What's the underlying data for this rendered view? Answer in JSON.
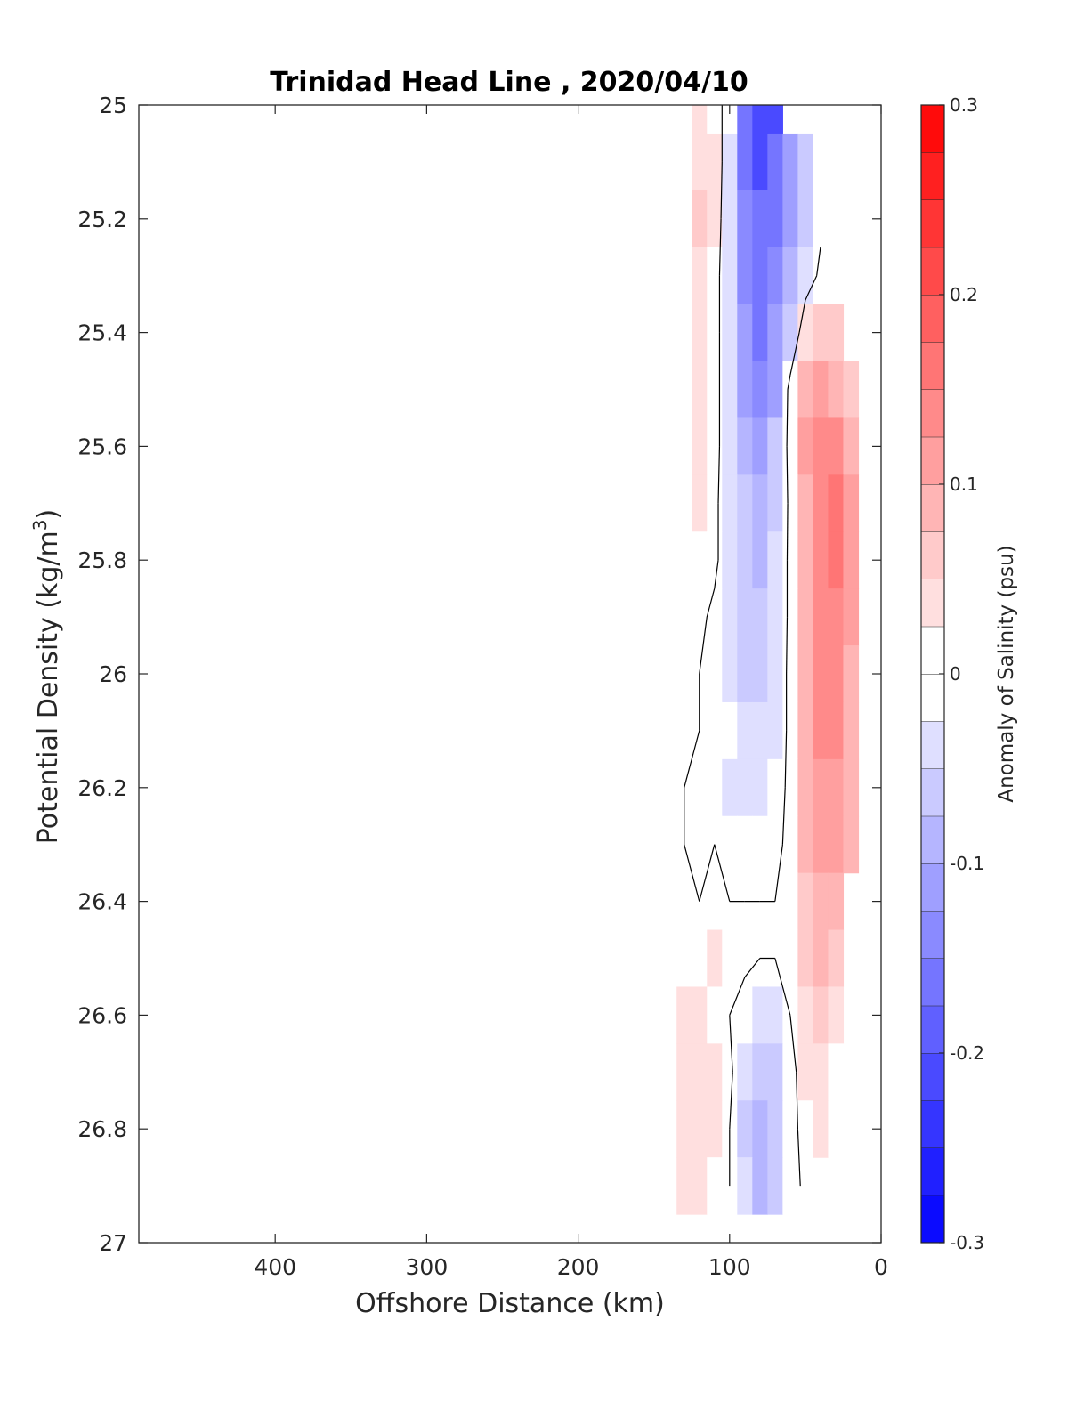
{
  "chart_data": {
    "type": "heatmap",
    "subtype": "filled-contour",
    "title": "Trinidad Head Line , 2020/04/10",
    "xlabel": "Offshore Distance (km)",
    "ylabel": "Potential Density (kg/m",
    "ylabel_superscript": "3",
    "ylabel_suffix": ")",
    "xlim": [
      490,
      0
    ],
    "ylim": [
      25,
      27
    ],
    "x_reversed": true,
    "y_reversed": true,
    "x_ticks": [
      400,
      300,
      200,
      100,
      0
    ],
    "y_ticks": [
      25,
      25.2,
      25.4,
      25.6,
      25.8,
      26,
      26.2,
      26.4,
      26.6,
      26.8,
      27
    ],
    "y_tick_labels": [
      "25",
      "25.2",
      "25.4",
      "25.6",
      "25.8",
      "26",
      "26.2",
      "26.4",
      "26.6",
      "26.8",
      "27"
    ],
    "colorbar": {
      "label": "Anomaly of Salinity (psu)",
      "range": [
        -0.3,
        0.3
      ],
      "ticks": [
        0.3,
        0.2,
        0.1,
        0,
        -0.1,
        -0.2,
        -0.3
      ],
      "tick_labels": [
        "0.3",
        "0.2",
        "0.1",
        "0",
        "-0.1",
        "-0.2",
        "-0.3"
      ],
      "levels": [
        -0.3,
        -0.275,
        -0.25,
        -0.225,
        -0.2,
        -0.175,
        -0.15,
        -0.125,
        -0.1,
        -0.075,
        -0.05,
        -0.025,
        0,
        0.025,
        0.05,
        0.075,
        0.1,
        0.125,
        0.15,
        0.175,
        0.2,
        0.225,
        0.25,
        0.275,
        0.3
      ],
      "colormap": "blue-white-red",
      "color_negative": "#0000ff",
      "color_zero": "#ffffff",
      "color_positive": "#ff0000"
    },
    "x_stations": [
      130,
      120,
      110,
      100,
      90,
      80,
      70,
      60,
      50,
      40,
      30,
      20
    ],
    "y_levels": [
      25.0,
      25.1,
      25.2,
      25.3,
      25.4,
      25.5,
      25.6,
      25.7,
      25.8,
      25.9,
      26.0,
      26.1,
      26.2,
      26.3,
      26.4,
      26.5,
      26.6,
      26.7,
      26.8,
      26.9
    ],
    "values": [
      [
        null,
        0.03,
        0.02,
        -0.02,
        -0.15,
        -0.2,
        -0.2,
        null,
        null,
        null,
        null,
        null
      ],
      [
        0.02,
        0.05,
        0.03,
        -0.03,
        -0.15,
        -0.2,
        -0.17,
        -0.12,
        -0.06,
        -0.02,
        null,
        null
      ],
      [
        0.02,
        0.06,
        0.03,
        -0.04,
        -0.14,
        -0.17,
        -0.15,
        -0.1,
        -0.05,
        -0.01,
        null,
        null
      ],
      [
        0.02,
        0.05,
        0.02,
        -0.04,
        -0.13,
        -0.16,
        -0.14,
        -0.09,
        -0.03,
        0.01,
        0.02,
        null
      ],
      [
        0.02,
        0.04,
        0.02,
        -0.04,
        -0.12,
        -0.15,
        -0.12,
        -0.06,
        0.04,
        0.06,
        0.07,
        null
      ],
      [
        0.02,
        0.04,
        0.02,
        -0.04,
        -0.11,
        -0.13,
        -0.1,
        0.02,
        0.1,
        0.11,
        0.1,
        0.06
      ],
      [
        0.02,
        0.04,
        0.02,
        -0.04,
        -0.09,
        -0.11,
        -0.07,
        0.02,
        0.11,
        0.14,
        0.15,
        0.1
      ],
      [
        0.01,
        0.03,
        0.01,
        -0.03,
        -0.07,
        -0.09,
        -0.05,
        0.01,
        0.1,
        0.14,
        0.16,
        0.12
      ],
      [
        0.01,
        0.02,
        0.01,
        -0.03,
        -0.06,
        -0.08,
        -0.04,
        0.01,
        0.1,
        0.14,
        0.16,
        0.12
      ],
      [
        0.0,
        0.01,
        -0.01,
        -0.03,
        -0.06,
        -0.07,
        -0.04,
        0.01,
        0.1,
        0.14,
        0.15,
        0.11
      ],
      [
        0.0,
        0.0,
        -0.01,
        -0.03,
        -0.05,
        -0.06,
        -0.03,
        0.01,
        0.1,
        0.14,
        0.14,
        0.1
      ],
      [
        0.0,
        0.0,
        -0.01,
        -0.02,
        -0.04,
        -0.04,
        -0.03,
        0.01,
        0.1,
        0.13,
        0.13,
        0.1
      ],
      [
        0.0,
        -0.02,
        -0.02,
        -0.03,
        -0.04,
        -0.03,
        -0.02,
        0.01,
        0.09,
        0.12,
        0.12,
        0.1
      ],
      [
        0.0,
        -0.01,
        0.0,
        -0.02,
        -0.02,
        -0.01,
        -0.01,
        0.01,
        0.08,
        0.12,
        0.12,
        0.1
      ],
      [
        0.01,
        0.0,
        0.0,
        0.0,
        0.0,
        0.0,
        0.0,
        0.02,
        0.07,
        0.1,
        0.09,
        null
      ],
      [
        0.02,
        0.0,
        0.03,
        0.02,
        0.01,
        0.0,
        0.0,
        0.02,
        0.06,
        0.08,
        0.06,
        null
      ],
      [
        0.03,
        0.03,
        0.02,
        0.0,
        -0.02,
        -0.03,
        -0.03,
        0.0,
        0.04,
        0.06,
        0.04,
        null
      ],
      [
        0.04,
        0.04,
        0.03,
        0.01,
        -0.04,
        -0.07,
        -0.07,
        -0.02,
        0.03,
        0.05,
        0.02,
        null
      ],
      [
        0.05,
        0.04,
        0.03,
        0.0,
        -0.05,
        -0.09,
        -0.07,
        -0.02,
        0.02,
        0.03,
        0.01,
        null
      ],
      [
        0.04,
        0.04,
        0.02,
        0.0,
        -0.04,
        -0.08,
        -0.07,
        -0.02,
        0.01,
        null,
        null,
        null
      ]
    ],
    "zero_contour": "black line at 0 psu",
    "grid": false
  }
}
